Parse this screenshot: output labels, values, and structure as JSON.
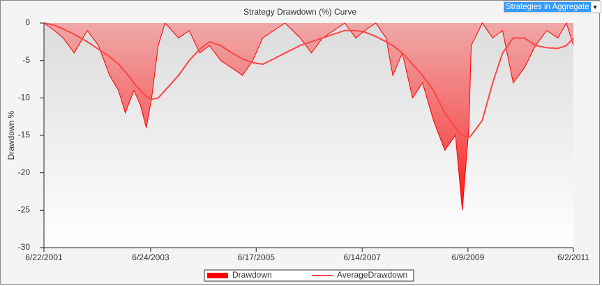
{
  "chart_data": {
    "type": "area-line",
    "title": "Strategy Drawdown (%) Curve",
    "y_label": "Drawdown %",
    "selector": "Strategies in Aggregate",
    "x": [
      "6/22/2001",
      "9/1/2001",
      "11/1/2001",
      "1/15/2002",
      "4/15/2002",
      "7/1/2002",
      "9/15/2002",
      "11/15/2002",
      "1/1/2003",
      "3/1/2003",
      "4/15/2003",
      "5/25/2003",
      "7/1/2003",
      "8/15/2003",
      "10/1/2003",
      "1/1/2004",
      "3/15/2004",
      "5/25/2004",
      "8/1/2004",
      "10/15/2004",
      "1/1/2005",
      "3/15/2005",
      "5/25/2005",
      "8/1/2005",
      "10/15/2005",
      "1/1/2006",
      "4/15/2006",
      "7/1/2006",
      "9/15/2006",
      "12/1/2006",
      "2/15/2007",
      "5/1/2007",
      "7/1/2007",
      "9/15/2007",
      "11/25/2007",
      "1/10/2008",
      "3/15/2008",
      "5/25/2008",
      "8/1/2008",
      "10/15/2008",
      "1/1/2009",
      "3/15/2009",
      "5/1/2009",
      "6/15/2009",
      "7/1/2009",
      "9/15/2009",
      "11/25/2009",
      "2/1/2010",
      "4/15/2010",
      "7/1/2010",
      "9/15/2010",
      "12/1/2010",
      "2/15/2011",
      "4/15/2011",
      "6/2/2011"
    ],
    "series": [
      {
        "name": "Drawdown",
        "color": "#ff0000",
        "values": [
          0,
          -1,
          -2,
          -4,
          -1,
          -3,
          -7,
          -9,
          -12,
          -9,
          -11,
          -14,
          -10,
          -3,
          0,
          -2,
          -1,
          -4,
          -3,
          -5,
          -6,
          -7,
          -5,
          -2,
          -1,
          0,
          -2,
          -4,
          -2,
          -1,
          0,
          -2,
          -1,
          0,
          -2,
          -7,
          -4,
          -10,
          -8,
          -13,
          -17,
          -15,
          -25,
          -14,
          -3,
          0,
          -2,
          -1,
          -8,
          -6,
          -3,
          -1,
          -2,
          0,
          -3
        ]
      },
      {
        "name": "AverageDrawdown",
        "color": "#ff4444",
        "values": [
          0,
          -0.3,
          -0.8,
          -1.5,
          -2.5,
          -3.5,
          -4.5,
          -5.5,
          -6.5,
          -8,
          -9,
          -9.8,
          -10.2,
          -10,
          -9,
          -7,
          -5,
          -3.5,
          -2.5,
          -3,
          -4,
          -4.8,
          -5.3,
          -5.5,
          -4.8,
          -4,
          -3,
          -2.5,
          -2,
          -1.5,
          -1,
          -1,
          -1.2,
          -1.8,
          -2.5,
          -3,
          -4,
          -5.5,
          -7,
          -9,
          -12,
          -14,
          -15,
          -15.3,
          -15,
          -13,
          -8,
          -4,
          -2,
          -2,
          -3,
          -3.3,
          -3.4,
          -3,
          -2
        ]
      }
    ],
    "xlim": [
      "6/22/2001",
      "6/2/2011"
    ],
    "xticks": [
      "6/22/2001",
      "6/24/2003",
      "6/17/2005",
      "6/14/2007",
      "6/9/2009",
      "6/2/2011"
    ],
    "ylim": [
      -30,
      0
    ],
    "yticks": [
      0,
      -5,
      -10,
      -15,
      -20,
      -25,
      -30
    ]
  }
}
